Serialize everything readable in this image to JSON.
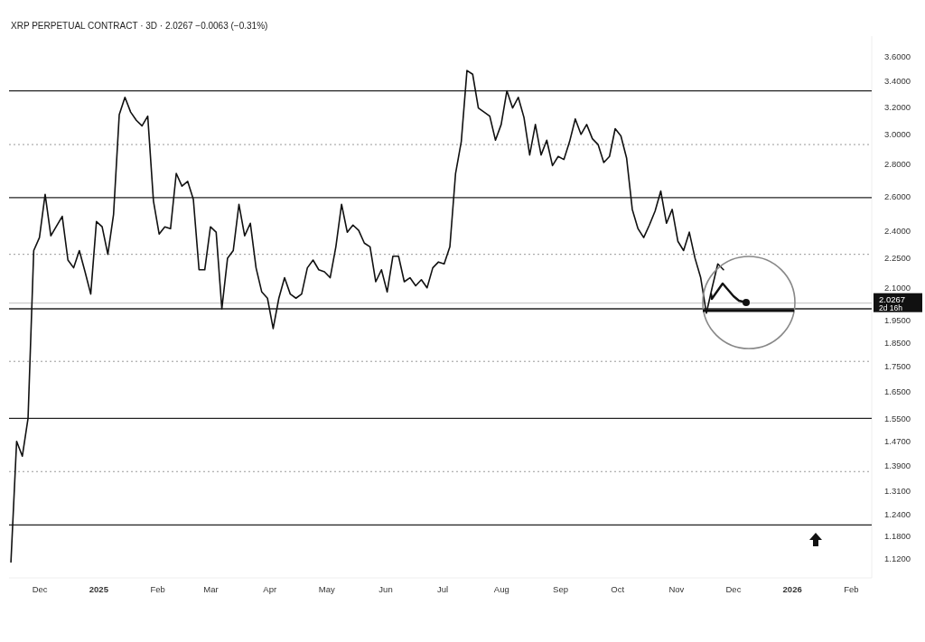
{
  "chart_data": {
    "type": "line",
    "title": "XRP PERPETUAL CONTRACT · 3D · 2.0267 −0.0063 (−0.31%)",
    "log": "y",
    "grid": false,
    "marker": "none",
    "line_style": "solid",
    "xlim": [
      "2024-11-15",
      "2026-02-12"
    ],
    "ylim": [
      1.07,
      3.77
    ],
    "xticks": [
      {
        "value": "2024-12-01",
        "label": "Dec"
      },
      {
        "value": "2025-01-01",
        "label": "2025"
      },
      {
        "value": "2025-02-01",
        "label": "Feb"
      },
      {
        "value": "2025-03-01",
        "label": "Mar"
      },
      {
        "value": "2025-04-01",
        "label": "Apr"
      },
      {
        "value": "2025-05-01",
        "label": "May"
      },
      {
        "value": "2025-06-01",
        "label": "Jun"
      },
      {
        "value": "2025-07-01",
        "label": "Jul"
      },
      {
        "value": "2025-08-01",
        "label": "Aug"
      },
      {
        "value": "2025-09-01",
        "label": "Sep"
      },
      {
        "value": "2025-10-01",
        "label": "Oct"
      },
      {
        "value": "2025-11-01",
        "label": "Nov"
      },
      {
        "value": "2025-12-01",
        "label": "Dec"
      },
      {
        "value": "2026-01-01",
        "label": "2026"
      },
      {
        "value": "2026-02-01",
        "label": "Feb"
      }
    ],
    "yticks": [
      {
        "value": 3.6,
        "label": "3.6000"
      },
      {
        "value": 3.4,
        "label": "3.4000"
      },
      {
        "value": 3.2,
        "label": "3.2000"
      },
      {
        "value": 3.0,
        "label": "3.0000"
      },
      {
        "value": 2.8,
        "label": "2.8000"
      },
      {
        "value": 2.6,
        "label": "2.6000"
      },
      {
        "value": 2.4,
        "label": "2.4000"
      },
      {
        "value": 2.25,
        "label": "2.2500"
      },
      {
        "value": 2.1,
        "label": "2.1000"
      },
      {
        "value": 1.95,
        "label": "1.9500"
      },
      {
        "value": 1.85,
        "label": "1.8500"
      },
      {
        "value": 1.75,
        "label": "1.7500"
      },
      {
        "value": 1.65,
        "label": "1.6500"
      },
      {
        "value": 1.55,
        "label": "1.5500"
      },
      {
        "value": 1.47,
        "label": "1.4700"
      },
      {
        "value": 1.39,
        "label": "1.3900"
      },
      {
        "value": 1.31,
        "label": "1.3100"
      },
      {
        "value": 1.24,
        "label": "1.2400"
      },
      {
        "value": 1.18,
        "label": "1.1800"
      },
      {
        "value": 1.12,
        "label": "1.1200"
      }
    ],
    "x": [
      "2024-11-16",
      "2024-11-19",
      "2024-11-22",
      "2024-11-25",
      "2024-11-28",
      "2024-12-01",
      "2024-12-04",
      "2024-12-07",
      "2024-12-13",
      "2024-12-16",
      "2024-12-19",
      "2024-12-22",
      "2024-12-25",
      "2024-12-28",
      "2024-12-31",
      "2025-01-03",
      "2025-01-06",
      "2025-01-09",
      "2025-01-12",
      "2025-01-15",
      "2025-01-18",
      "2025-01-21",
      "2025-01-24",
      "2025-01-27",
      "2025-01-30",
      "2025-02-02",
      "2025-02-05",
      "2025-02-08",
      "2025-02-11",
      "2025-02-14",
      "2025-02-17",
      "2025-02-20",
      "2025-02-23",
      "2025-02-26",
      "2025-03-01",
      "2025-03-04",
      "2025-03-07",
      "2025-03-10",
      "2025-03-13",
      "2025-03-16",
      "2025-03-19",
      "2025-03-22",
      "2025-03-25",
      "2025-03-28",
      "2025-03-31",
      "2025-04-03",
      "2025-04-06",
      "2025-04-09",
      "2025-04-12",
      "2025-04-15",
      "2025-04-18",
      "2025-04-21",
      "2025-04-24",
      "2025-04-27",
      "2025-04-30",
      "2025-05-03",
      "2025-05-06",
      "2025-05-09",
      "2025-05-12",
      "2025-05-15",
      "2025-05-18",
      "2025-05-21",
      "2025-05-24",
      "2025-05-27",
      "2025-05-30",
      "2025-06-02",
      "2025-06-05",
      "2025-06-08",
      "2025-06-11",
      "2025-06-14",
      "2025-06-17",
      "2025-06-20",
      "2025-06-23",
      "2025-06-26",
      "2025-06-29",
      "2025-07-02",
      "2025-07-05",
      "2025-07-08",
      "2025-07-11",
      "2025-07-14",
      "2025-07-17",
      "2025-07-20",
      "2025-07-23",
      "2025-07-26",
      "2025-07-29",
      "2025-08-01",
      "2025-08-04",
      "2025-08-07",
      "2025-08-10",
      "2025-08-13",
      "2025-08-16",
      "2025-08-19",
      "2025-08-22",
      "2025-08-25",
      "2025-08-28",
      "2025-08-31",
      "2025-09-03",
      "2025-09-06",
      "2025-09-09",
      "2025-09-12",
      "2025-09-15",
      "2025-09-18",
      "2025-09-21",
      "2025-09-24",
      "2025-09-27",
      "2025-09-30",
      "2025-10-03",
      "2025-10-06",
      "2025-10-09",
      "2025-10-12",
      "2025-10-15",
      "2025-10-18",
      "2025-10-21",
      "2025-10-24",
      "2025-10-27",
      "2025-10-30",
      "2025-11-02",
      "2025-11-05",
      "2025-11-08",
      "2025-11-11",
      "2025-11-14",
      "2025-11-17",
      "2025-11-20",
      "2025-11-23",
      "2025-11-26"
    ],
    "series": [
      {
        "color": "#111111",
        "values": [
          1.11,
          1.47,
          1.42,
          1.55,
          2.29,
          2.36,
          2.61,
          2.37,
          2.48,
          2.24,
          2.2,
          2.29,
          2.18,
          2.07,
          2.45,
          2.42,
          2.27,
          2.49,
          3.14,
          3.27,
          3.16,
          3.1,
          3.06,
          3.13,
          2.57,
          2.38,
          2.42,
          2.41,
          2.74,
          2.66,
          2.69,
          2.58,
          2.19,
          2.19,
          2.42,
          2.39,
          2.0,
          2.25,
          2.29,
          2.55,
          2.37,
          2.44,
          2.2,
          2.08,
          2.05,
          1.91,
          2.05,
          2.15,
          2.07,
          2.05,
          2.07,
          2.2,
          2.24,
          2.19,
          2.18,
          2.15,
          2.31,
          2.55,
          2.39,
          2.43,
          2.4,
          2.33,
          2.31,
          2.13,
          2.19,
          2.08,
          2.26,
          2.26,
          2.13,
          2.15,
          2.11,
          2.14,
          2.1,
          2.2,
          2.23,
          2.22,
          2.31,
          2.74,
          2.95,
          3.48,
          3.45,
          3.19,
          3.16,
          3.13,
          2.96,
          3.07,
          3.32,
          3.19,
          3.27,
          3.12,
          2.86,
          3.07,
          2.86,
          2.96,
          2.79,
          2.85,
          2.83,
          2.95,
          3.11,
          3.0,
          3.07,
          2.97,
          2.93,
          2.81,
          2.85,
          3.04,
          2.99,
          2.84,
          2.52,
          2.41,
          2.36,
          2.43,
          2.51,
          2.63,
          2.44,
          2.52,
          2.34,
          2.29,
          2.39,
          2.25,
          2.15,
          1.98,
          2.1,
          2.22,
          2.19
        ]
      }
    ],
    "ref_lines": [
      {
        "axis": "y",
        "value": 3.32,
        "color": "#222222",
        "line_style": "solid"
      },
      {
        "axis": "y",
        "value": 2.93,
        "color": "#999999",
        "line_style": "dotted"
      },
      {
        "axis": "y",
        "value": 2.59,
        "color": "#222222",
        "line_style": "solid"
      },
      {
        "axis": "y",
        "value": 2.27,
        "color": "#999999",
        "line_style": "dotted"
      },
      {
        "axis": "y",
        "value": 2.0,
        "color": "#222222",
        "line_style": "solid"
      },
      {
        "axis": "y",
        "value": 1.77,
        "color": "#999999",
        "line_style": "dotted"
      },
      {
        "axis": "y",
        "value": 1.55,
        "color": "#222222",
        "line_style": "solid"
      },
      {
        "axis": "y",
        "value": 1.37,
        "color": "#999999",
        "line_style": "dotted"
      },
      {
        "axis": "y",
        "value": 1.21,
        "color": "#222222",
        "line_style": "solid"
      },
      {
        "axis": "y",
        "value": 2.0267,
        "label": "2.0267",
        "color": "#cccccc",
        "line_style": "solid"
      }
    ],
    "annotations": [
      "2d 16h"
    ]
  }
}
